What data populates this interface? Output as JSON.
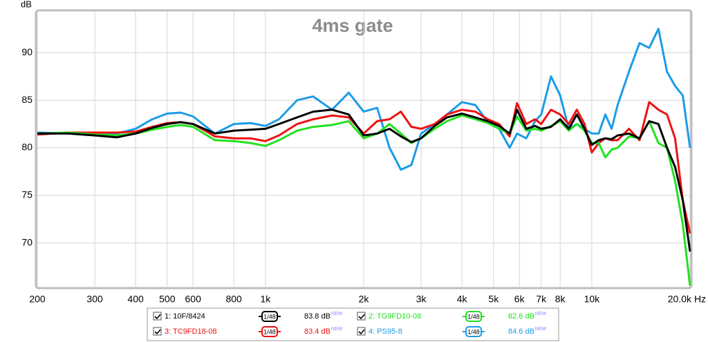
{
  "chart_data": {
    "type": "line",
    "title": "4ms gate",
    "y_label": "dB",
    "x_label": "Hz",
    "log_x": true,
    "grid": true,
    "xlim": [
      200,
      20000
    ],
    "ylim": [
      65.4,
      94.3
    ],
    "xticks": [
      200,
      300,
      400,
      500,
      600,
      800,
      {
        "value": 1000,
        "label": "1k"
      },
      {
        "value": 2000,
        "label": "2k"
      },
      {
        "value": 3000,
        "label": "3k"
      },
      {
        "value": 4000,
        "label": "4k"
      },
      {
        "value": 5000,
        "label": "5k"
      },
      {
        "value": 6000,
        "label": "6k"
      },
      {
        "value": 7000,
        "label": "7k"
      },
      {
        "value": 8000,
        "label": "8k"
      },
      {
        "value": 10000,
        "label": "10k"
      },
      {
        "value": 20000,
        "label": "20.0k"
      }
    ],
    "yticks": [
      70,
      75,
      80,
      85,
      90
    ],
    "x": [
      200,
      250,
      300,
      350,
      400,
      450,
      500,
      550,
      600,
      700,
      800,
      900,
      1000,
      1100,
      1250,
      1400,
      1600,
      1800,
      2000,
      2200,
      2400,
      2600,
      2800,
      3000,
      3300,
      3600,
      4000,
      4400,
      4800,
      5200,
      5600,
      5900,
      6300,
      6700,
      7000,
      7500,
      8000,
      8500,
      9000,
      9500,
      10000,
      10500,
      11000,
      11500,
      12000,
      13000,
      14000,
      15000,
      16000,
      17000,
      18000,
      19000,
      20000
    ],
    "series": [
      {
        "name": "1: 10F/8424",
        "color": "#000000",
        "smoothing": "1/48",
        "level": "83.8 dB",
        "badge": "NEW",
        "values": [
          81.5,
          81.5,
          81.3,
          81.1,
          81.5,
          82.1,
          82.5,
          82.7,
          82.5,
          81.5,
          81.8,
          81.9,
          82.0,
          82.5,
          83.2,
          83.8,
          84.0,
          83.5,
          81.3,
          81.5,
          82.0,
          81.2,
          80.6,
          81.0,
          82.3,
          83.2,
          83.6,
          83.2,
          82.8,
          82.3,
          81.5,
          84.0,
          82.0,
          82.3,
          82.0,
          82.2,
          83.0,
          82.0,
          83.5,
          82.0,
          80.3,
          80.8,
          81.0,
          80.9,
          81.3,
          81.5,
          81.0,
          82.8,
          82.5,
          80.0,
          78.0,
          74.5,
          69.1
        ]
      },
      {
        "name": "2: TG9FD10-08",
        "color": "#22e01e",
        "smoothing": "1/48",
        "level": "82.6 dB",
        "badge": "NEW",
        "values": [
          81.5,
          81.6,
          81.4,
          81.3,
          81.5,
          81.9,
          82.2,
          82.4,
          82.2,
          80.8,
          80.7,
          80.5,
          80.2,
          80.8,
          81.8,
          82.2,
          82.4,
          82.8,
          81.0,
          81.5,
          82.5,
          81.5,
          80.5,
          81.0,
          82.0,
          82.8,
          83.4,
          83.0,
          82.6,
          82.0,
          81.5,
          83.3,
          81.8,
          82.0,
          81.8,
          82.3,
          82.8,
          81.8,
          82.5,
          81.8,
          80.5,
          80.5,
          79.0,
          79.8,
          80.0,
          81.2,
          81.0,
          82.8,
          80.5,
          80.0,
          76.5,
          72.0,
          65.5
        ]
      },
      {
        "name": "3: TC9FD18-08",
        "color": "#ee1111",
        "smoothing": "1/48",
        "level": "83.4 dB",
        "badge": "NEW",
        "values": [
          81.4,
          81.6,
          81.6,
          81.6,
          81.7,
          82.2,
          82.6,
          82.7,
          82.5,
          81.2,
          81.0,
          81.0,
          80.7,
          81.3,
          82.5,
          83.0,
          83.4,
          83.2,
          81.5,
          82.8,
          83.0,
          83.8,
          82.2,
          82.0,
          82.5,
          83.5,
          84.0,
          83.8,
          83.0,
          82.5,
          81.2,
          84.7,
          82.5,
          83.0,
          82.5,
          84.0,
          83.5,
          82.5,
          84.0,
          82.5,
          79.5,
          80.5,
          81.0,
          80.8,
          80.8,
          82.0,
          80.8,
          84.8,
          84.0,
          83.5,
          81.0,
          74.5,
          71.0
        ]
      },
      {
        "name": "4: PS95-8",
        "color": "#1a9be8",
        "smoothing": "1/48",
        "level": "84.6 dB",
        "badge": "NEW",
        "values": [
          81.6,
          81.5,
          81.3,
          81.5,
          82.0,
          83.0,
          83.6,
          83.7,
          83.3,
          81.5,
          82.5,
          82.6,
          82.3,
          83.0,
          85.0,
          85.4,
          84.0,
          85.8,
          83.8,
          84.2,
          80.0,
          77.7,
          78.2,
          81.5,
          82.5,
          83.5,
          84.8,
          84.5,
          82.7,
          82.0,
          80.0,
          81.5,
          81.0,
          82.8,
          83.5,
          87.5,
          85.5,
          82.0,
          82.5,
          82.0,
          81.5,
          81.5,
          83.5,
          82.0,
          84.5,
          88.0,
          91.0,
          90.5,
          92.5,
          88.0,
          86.5,
          85.5,
          80.0
        ]
      }
    ]
  }
}
